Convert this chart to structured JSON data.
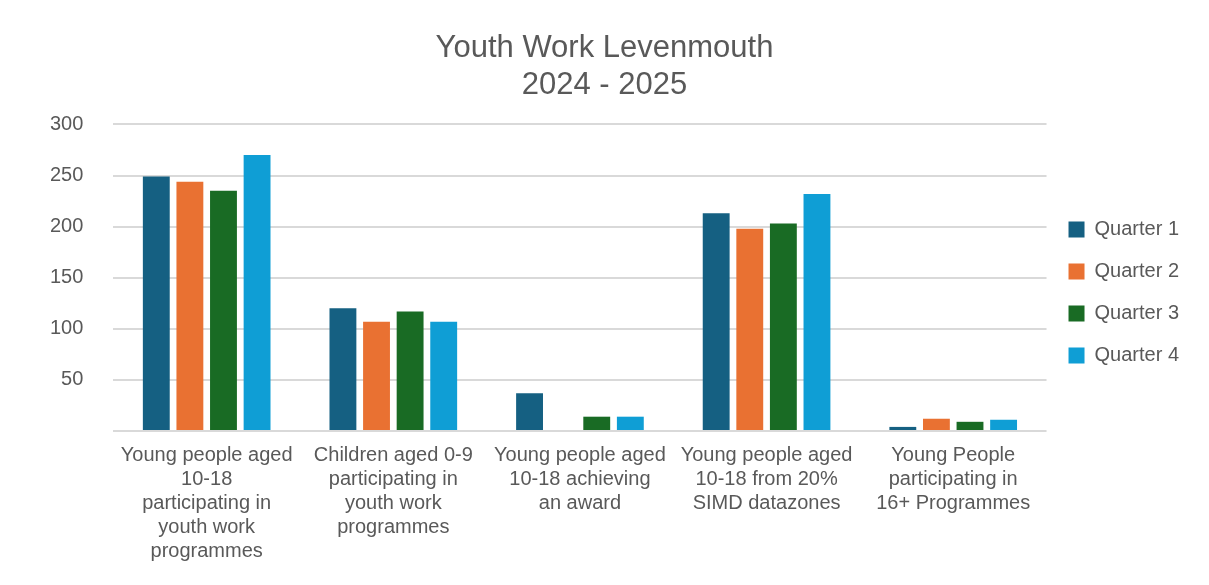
{
  "chart_data": {
    "type": "bar",
    "title": "Youth Work Levenmouth\n2024 - 2025",
    "categories": [
      "Young people aged 10-18 participating in youth work programmes",
      "Children aged 0-9 participating in youth work programmes",
      "Young people aged 10-18 achieving an award",
      "Young people aged 10-18 from 20% SIMD datazones",
      "Young People participating in 16+ Programmes"
    ],
    "series": [
      {
        "name": "Quarter 1",
        "color": "#156082",
        "values": [
          249,
          120,
          37,
          213,
          4
        ]
      },
      {
        "name": "Quarter 2",
        "color": "#e97132",
        "values": [
          244,
          107,
          0,
          198,
          12
        ]
      },
      {
        "name": "Quarter 3",
        "color": "#196b24",
        "values": [
          235,
          117,
          14,
          203,
          9
        ]
      },
      {
        "name": "Quarter 4",
        "color": "#0f9ed5",
        "values": [
          270,
          107,
          14,
          232,
          11
        ]
      }
    ],
    "ylim": [
      0,
      300
    ],
    "yticks": [
      {
        "value": 0,
        "label": null
      },
      50,
      100,
      150,
      200,
      250,
      300
    ],
    "grid": "y",
    "legend": "right"
  }
}
